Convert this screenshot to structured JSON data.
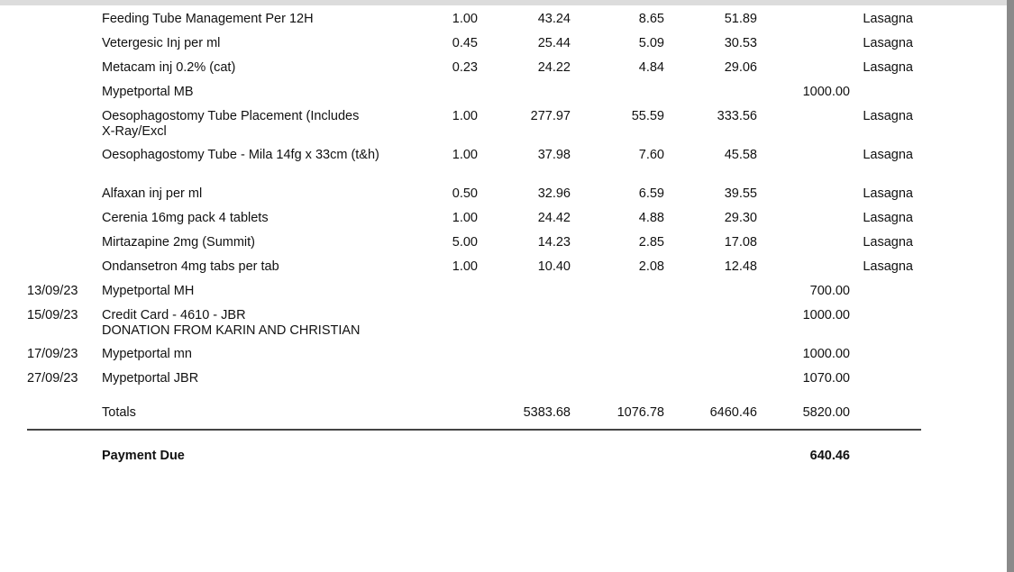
{
  "table": {
    "rows": [
      {
        "description": [
          "Feeding Tube Management Per 12H"
        ],
        "qty": "1.00",
        "net": "43.24",
        "vat": "8.65",
        "gross": "51.89",
        "animal": "Lasagna"
      },
      {
        "description": [
          "Vetergesic Inj per ml"
        ],
        "qty": "0.45",
        "net": "25.44",
        "vat": "5.09",
        "gross": "30.53",
        "animal": "Lasagna"
      },
      {
        "description": [
          "Metacam inj 0.2% (cat)"
        ],
        "qty": "0.23",
        "net": "24.22",
        "vat": "4.84",
        "gross": "29.06",
        "animal": "Lasagna"
      },
      {
        "description": [
          "Mypetportal MB"
        ],
        "pay": "1000.00"
      },
      {
        "description": [
          "Oesophagostomy Tube Placement (Includes",
          "X-Ray/Excl"
        ],
        "qty": "1.00",
        "net": "277.97",
        "vat": "55.59",
        "gross": "333.56",
        "animal": "Lasagna"
      },
      {
        "description": [
          "Oesophagostomy Tube - Mila 14fg x  33cm (t&h)"
        ],
        "qty": "1.00",
        "net": "37.98",
        "vat": "7.60",
        "gross": "45.58",
        "animal": "Lasagna"
      },
      {
        "description": [
          "Alfaxan inj per ml"
        ],
        "qty": "0.50",
        "net": "32.96",
        "vat": "6.59",
        "gross": "39.55",
        "animal": "Lasagna"
      },
      {
        "description": [
          "Cerenia 16mg pack 4 tablets"
        ],
        "qty": "1.00",
        "net": "24.42",
        "vat": "4.88",
        "gross": "29.30",
        "animal": "Lasagna"
      },
      {
        "description": [
          "Mirtazapine 2mg (Summit)"
        ],
        "qty": "5.00",
        "net": "14.23",
        "vat": "2.85",
        "gross": "17.08",
        "animal": "Lasagna"
      },
      {
        "description": [
          "Ondansetron 4mg  tabs per tab"
        ],
        "qty": "1.00",
        "net": "10.40",
        "vat": "2.08",
        "gross": "12.48",
        "animal": "Lasagna"
      },
      {
        "date": "13/09/23",
        "description": [
          "Mypetportal MH"
        ],
        "pay": "700.00"
      },
      {
        "date": "15/09/23",
        "description": [
          "Credit Card - 4610 - JBR",
          "DONATION FROM KARIN AND CHRISTIAN"
        ],
        "pay": "1000.00"
      },
      {
        "date": "17/09/23",
        "description": [
          "Mypetportal mn"
        ],
        "pay": "1000.00"
      },
      {
        "date": "27/09/23",
        "description": [
          "Mypetportal JBR"
        ],
        "pay": "1070.00"
      }
    ],
    "totals": {
      "label": "Totals",
      "net": "5383.68",
      "vat": "1076.78",
      "gross": "6460.46",
      "pay": "5820.00"
    },
    "payment_due": {
      "label": "Payment Due",
      "amount": "640.46"
    }
  }
}
